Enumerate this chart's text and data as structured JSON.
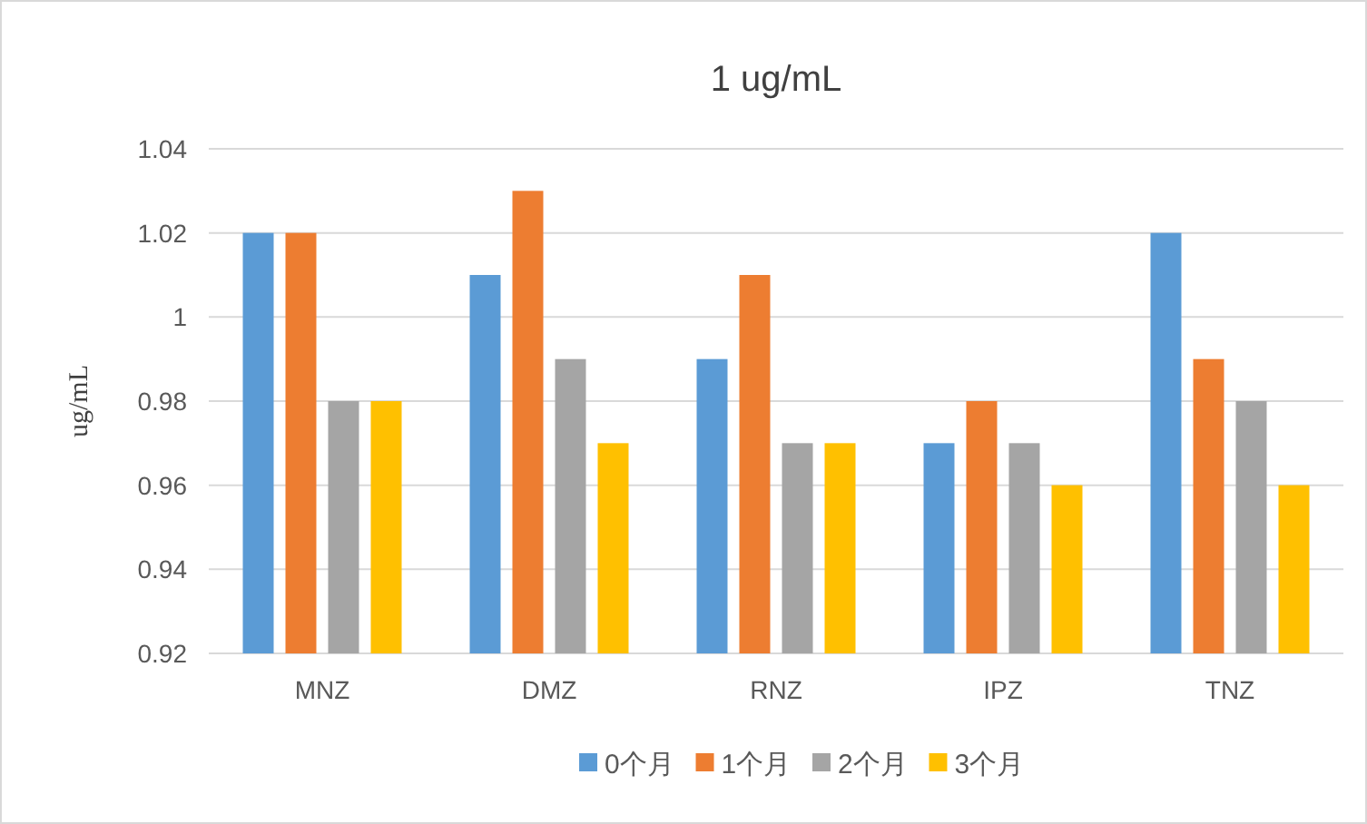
{
  "chart_data": {
    "type": "bar",
    "title": "1 ug/mL",
    "ylabel": "ug/mL",
    "categories": [
      "MNZ",
      "DMZ",
      "RNZ",
      "IPZ",
      "TNZ"
    ],
    "series": [
      {
        "name": "0个月",
        "color": "#5b9bd5",
        "values": [
          1.02,
          1.01,
          0.99,
          0.97,
          1.02
        ]
      },
      {
        "name": "1个月",
        "color": "#ed7d31",
        "values": [
          1.02,
          1.03,
          1.01,
          0.98,
          0.99
        ]
      },
      {
        "name": "2个月",
        "color": "#a5a5a5",
        "values": [
          0.98,
          0.99,
          0.97,
          0.97,
          0.98
        ]
      },
      {
        "name": "3个月",
        "color": "#ffc000",
        "values": [
          0.98,
          0.97,
          0.97,
          0.96,
          0.96
        ]
      }
    ],
    "ylim": [
      0.92,
      1.04
    ],
    "yticks": [
      0.92,
      0.94,
      0.96,
      0.98,
      1,
      1.02,
      1.04
    ],
    "grid": "y",
    "legend": "bottom"
  }
}
